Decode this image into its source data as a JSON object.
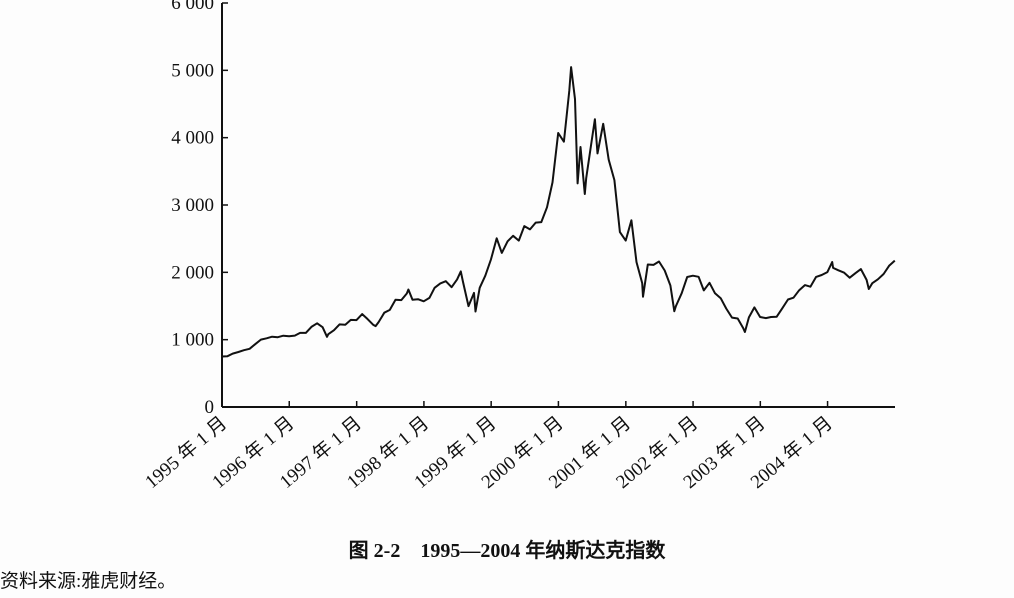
{
  "chart_data": {
    "type": "line",
    "title": "图 2-2　1995—2004 年纳斯达克指数",
    "source": "资料来源:雅虎财经。",
    "xlabel": "",
    "ylabel": "",
    "ylim": [
      0,
      6000
    ],
    "xlim": [
      "1995-01-01",
      "2005-01-01"
    ],
    "y_ticks": [
      0,
      1000,
      2000,
      3000,
      4000,
      5000,
      6000
    ],
    "y_tick_labels": [
      "0",
      "1 000",
      "2 000",
      "3 000",
      "4 000",
      "5 000",
      "6 000"
    ],
    "x_ticks": [
      "1995-01-01",
      "1996-01-01",
      "1997-01-01",
      "1998-01-01",
      "1999-01-01",
      "2000-01-01",
      "2001-01-01",
      "2002-01-01",
      "2003-01-01",
      "2004-01-01"
    ],
    "x_tick_labels": [
      "1995 年 1 月",
      "1996 年 1 月",
      "1997 年 1 月",
      "1998 年 1 月",
      "1999 年 1 月",
      "2000 年 1 月",
      "2001 年 1 月",
      "2002 年 1 月",
      "2003 年 1 月",
      "2004 年 1 月"
    ],
    "grid": false,
    "line_color": "#111111",
    "series": [
      {
        "points": [
          [
            "1995-01-01",
            750
          ],
          [
            "1995-01-31",
            755
          ],
          [
            "1995-02-28",
            793
          ],
          [
            "1995-03-31",
            817
          ],
          [
            "1995-04-30",
            843
          ],
          [
            "1995-05-31",
            865
          ],
          [
            "1995-06-30",
            933
          ],
          [
            "1995-07-31",
            1001
          ],
          [
            "1995-08-31",
            1020
          ],
          [
            "1995-09-30",
            1044
          ],
          [
            "1995-10-31",
            1036
          ],
          [
            "1995-11-30",
            1059
          ],
          [
            "1995-12-31",
            1052
          ],
          [
            "1996-01-31",
            1060
          ],
          [
            "1996-02-29",
            1100
          ],
          [
            "1996-03-31",
            1101
          ],
          [
            "1996-04-30",
            1190
          ],
          [
            "1996-05-31",
            1243
          ],
          [
            "1996-06-30",
            1185
          ],
          [
            "1996-07-24",
            1042
          ],
          [
            "1996-07-31",
            1081
          ],
          [
            "1996-08-31",
            1141
          ],
          [
            "1996-09-30",
            1226
          ],
          [
            "1996-10-31",
            1222
          ],
          [
            "1996-11-30",
            1293
          ],
          [
            "1996-12-31",
            1291
          ],
          [
            "1997-01-31",
            1380
          ],
          [
            "1997-02-28",
            1309
          ],
          [
            "1997-03-31",
            1222
          ],
          [
            "1997-04-14",
            1202
          ],
          [
            "1997-04-30",
            1261
          ],
          [
            "1997-05-31",
            1400
          ],
          [
            "1997-06-30",
            1442
          ],
          [
            "1997-07-31",
            1594
          ],
          [
            "1997-08-31",
            1587
          ],
          [
            "1997-09-30",
            1686
          ],
          [
            "1997-10-09",
            1745
          ],
          [
            "1997-10-31",
            1594
          ],
          [
            "1997-11-30",
            1601
          ],
          [
            "1997-12-31",
            1570
          ],
          [
            "1998-01-31",
            1620
          ],
          [
            "1998-02-28",
            1771
          ],
          [
            "1998-03-31",
            1835
          ],
          [
            "1998-04-30",
            1868
          ],
          [
            "1998-05-31",
            1779
          ],
          [
            "1998-06-30",
            1895
          ],
          [
            "1998-07-20",
            2014
          ],
          [
            "1998-07-31",
            1872
          ],
          [
            "1998-08-31",
            1499
          ],
          [
            "1998-09-30",
            1694
          ],
          [
            "1998-10-08",
            1419
          ],
          [
            "1998-10-31",
            1771
          ],
          [
            "1998-11-30",
            1950
          ],
          [
            "1998-12-31",
            2193
          ],
          [
            "1999-01-31",
            2506
          ],
          [
            "1999-02-28",
            2288
          ],
          [
            "1999-03-31",
            2461
          ],
          [
            "1999-04-30",
            2543
          ],
          [
            "1999-05-31",
            2471
          ],
          [
            "1999-06-30",
            2686
          ],
          [
            "1999-07-31",
            2638
          ],
          [
            "1999-08-31",
            2739
          ],
          [
            "1999-09-30",
            2746
          ],
          [
            "1999-10-31",
            2966
          ],
          [
            "1999-11-30",
            3336
          ],
          [
            "1999-12-31",
            4069
          ],
          [
            "2000-01-31",
            3940
          ],
          [
            "2000-02-29",
            4697
          ],
          [
            "2000-03-10",
            5048
          ],
          [
            "2000-03-31",
            4573
          ],
          [
            "2000-04-14",
            3321
          ],
          [
            "2000-04-30",
            3861
          ],
          [
            "2000-05-23",
            3164
          ],
          [
            "2000-05-31",
            3400
          ],
          [
            "2000-06-30",
            3966
          ],
          [
            "2000-07-17",
            4274
          ],
          [
            "2000-07-31",
            3767
          ],
          [
            "2000-08-31",
            4206
          ],
          [
            "2000-09-30",
            3673
          ],
          [
            "2000-10-31",
            3370
          ],
          [
            "2000-11-30",
            2598
          ],
          [
            "2000-12-31",
            2471
          ],
          [
            "2001-01-31",
            2773
          ],
          [
            "2001-02-28",
            2152
          ],
          [
            "2001-03-31",
            1840
          ],
          [
            "2001-04-04",
            1638
          ],
          [
            "2001-04-30",
            2116
          ],
          [
            "2001-05-31",
            2110
          ],
          [
            "2001-06-30",
            2161
          ],
          [
            "2001-07-31",
            2027
          ],
          [
            "2001-08-31",
            1805
          ],
          [
            "2001-09-21",
            1423
          ],
          [
            "2001-09-30",
            1499
          ],
          [
            "2001-10-31",
            1690
          ],
          [
            "2001-11-30",
            1931
          ],
          [
            "2001-12-31",
            1950
          ],
          [
            "2002-01-31",
            1934
          ],
          [
            "2002-02-28",
            1731
          ],
          [
            "2002-03-31",
            1845
          ],
          [
            "2002-04-30",
            1688
          ],
          [
            "2002-05-31",
            1616
          ],
          [
            "2002-06-30",
            1463
          ],
          [
            "2002-07-31",
            1328
          ],
          [
            "2002-08-31",
            1315
          ],
          [
            "2002-09-30",
            1172
          ],
          [
            "2002-10-09",
            1114
          ],
          [
            "2002-10-31",
            1330
          ],
          [
            "2002-11-30",
            1479
          ],
          [
            "2002-12-31",
            1336
          ],
          [
            "2003-01-31",
            1321
          ],
          [
            "2003-02-28",
            1337
          ],
          [
            "2003-03-31",
            1341
          ],
          [
            "2003-04-30",
            1464
          ],
          [
            "2003-05-31",
            1596
          ],
          [
            "2003-06-30",
            1623
          ],
          [
            "2003-07-31",
            1735
          ],
          [
            "2003-08-31",
            1810
          ],
          [
            "2003-09-30",
            1787
          ],
          [
            "2003-10-31",
            1932
          ],
          [
            "2003-11-30",
            1960
          ],
          [
            "2003-12-31",
            2003
          ],
          [
            "2004-01-26",
            2153
          ],
          [
            "2004-01-31",
            2066
          ],
          [
            "2004-02-29",
            2030
          ],
          [
            "2004-03-31",
            1994
          ],
          [
            "2004-04-30",
            1920
          ],
          [
            "2004-05-31",
            1987
          ],
          [
            "2004-06-30",
            2048
          ],
          [
            "2004-07-31",
            1887
          ],
          [
            "2004-08-12",
            1752
          ],
          [
            "2004-08-31",
            1838
          ],
          [
            "2004-09-30",
            1897
          ],
          [
            "2004-10-31",
            1975
          ],
          [
            "2004-11-30",
            2097
          ],
          [
            "2004-12-31",
            2175
          ]
        ]
      }
    ]
  }
}
